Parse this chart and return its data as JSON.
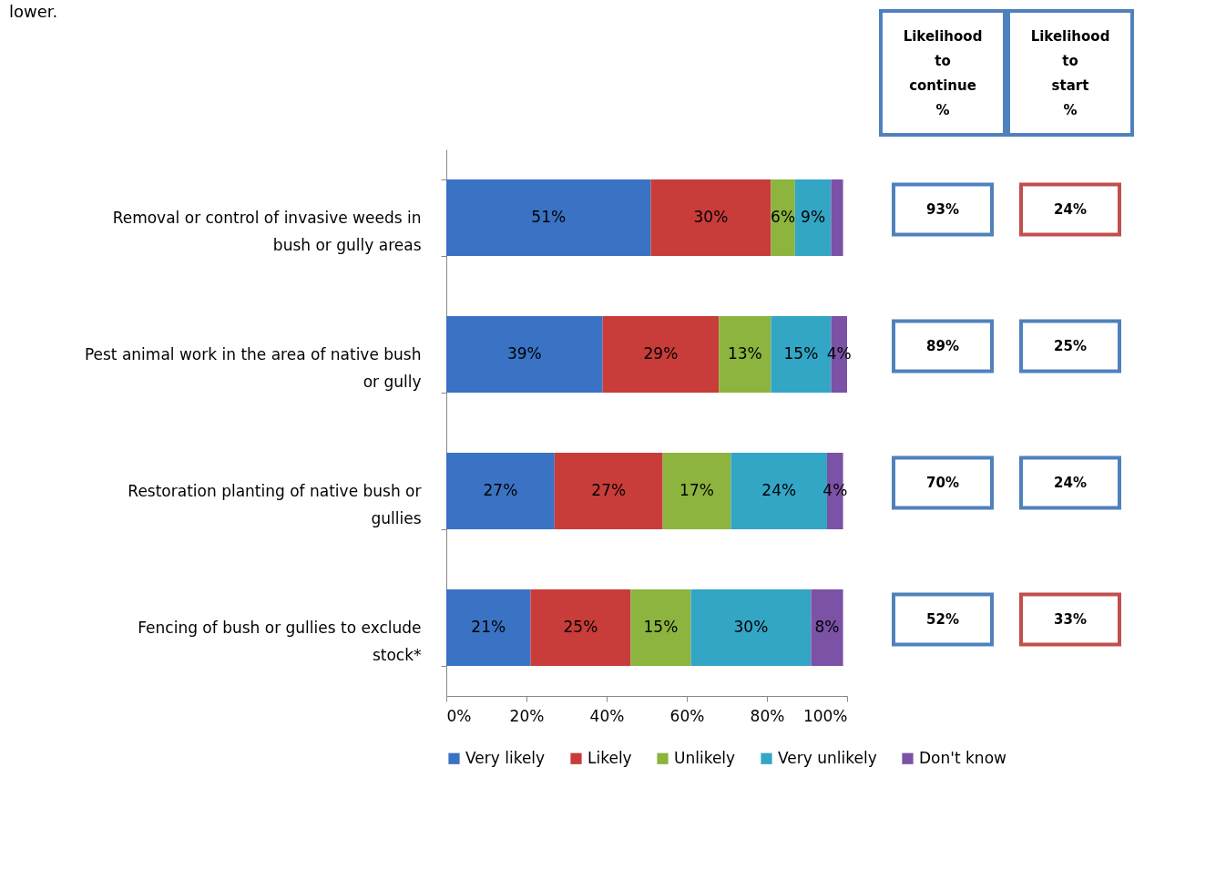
{
  "chart_data": [
    {
      "type": "bar",
      "orientation": "horizontal",
      "stacked": true,
      "annotations": [
        "lower."
      ],
      "categories": [
        "Removal or control of invasive weeds in bush or gully areas",
        "Pest animal work in the area of native bush or gully",
        "Restoration planting of native bush or gullies",
        "Fencing of bush or gullies to exclude stock*"
      ],
      "series": [
        {
          "name": "Very likely",
          "color": "#3a72c4",
          "values": [
            51,
            39,
            27,
            21
          ],
          "value_labels": [
            "51%",
            "39%",
            "27%",
            "21%"
          ]
        },
        {
          "name": "Likely",
          "color": "#c83c3a",
          "values": [
            30,
            29,
            27,
            25
          ],
          "value_labels": [
            "30%",
            "29%",
            "27%",
            "25%"
          ]
        },
        {
          "name": "Unlikely",
          "color": "#8cb43e",
          "values": [
            6,
            13,
            17,
            15
          ],
          "value_labels": [
            "6%",
            "13%",
            "17%",
            "15%"
          ]
        },
        {
          "name": "Very unlikely",
          "color": "#33a6c6",
          "values": [
            9,
            15,
            24,
            30
          ],
          "value_labels": [
            "9%",
            "15%",
            "24%",
            "30%"
          ]
        },
        {
          "name": "Don't know",
          "color": "#7b52a6",
          "values": [
            3,
            4,
            4,
            8
          ],
          "value_labels": [
            null,
            "4%",
            "4%",
            "8%"
          ]
        }
      ],
      "xlim": [
        0,
        100
      ],
      "xticks": [
        {
          "value": 0,
          "label": "0%"
        },
        {
          "value": 20,
          "label": "20%"
        },
        {
          "value": 40,
          "label": "40%"
        },
        {
          "value": 60,
          "label": "60%"
        },
        {
          "value": 80,
          "label": "80%"
        },
        {
          "value": 100,
          "label": "100%"
        }
      ],
      "legend": "bottom",
      "grid": false
    },
    {
      "type": "other",
      "categories": [
        "Likelihood to continue %",
        "Likelihood to start %"
      ],
      "cell_labels": [
        [
          "93%",
          "24%"
        ],
        [
          "89%",
          "25%"
        ],
        [
          "70%",
          "24%"
        ],
        [
          "52%",
          "33%"
        ]
      ],
      "colors": [
        [
          "#4f81bd",
          "#c0504d"
        ],
        [
          "#4f81bd",
          "#4f81bd"
        ],
        [
          "#4f81bd",
          "#4f81bd"
        ],
        [
          "#4f81bd",
          "#c0504d"
        ]
      ]
    }
  ]
}
